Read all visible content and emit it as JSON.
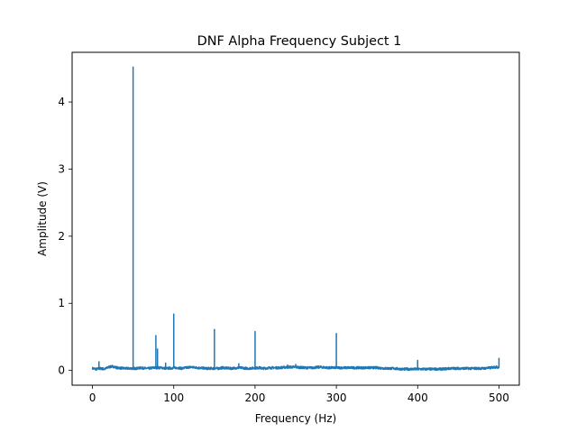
{
  "chart_data": {
    "type": "line",
    "title": "DNF Alpha Frequency Subject 1",
    "xlabel": "Frequency (Hz)",
    "ylabel": "Amplitude (V)",
    "xlim": [
      -25,
      525
    ],
    "ylim": [
      -0.22,
      4.74
    ],
    "xticks": [
      0,
      100,
      200,
      300,
      400,
      500
    ],
    "yticks": [
      0,
      1,
      2,
      3,
      4
    ],
    "grid": false,
    "line_color": "#1f77b4",
    "series": [
      {
        "baseline": [
          [
            0,
            0.03
          ],
          [
            5,
            0.02
          ],
          [
            10,
            0.03
          ],
          [
            15,
            0.02
          ],
          [
            20,
            0.05
          ],
          [
            25,
            0.06
          ],
          [
            30,
            0.04
          ],
          [
            40,
            0.03
          ],
          [
            55,
            0.03
          ],
          [
            60,
            0.04
          ],
          [
            65,
            0.03
          ],
          [
            70,
            0.03
          ],
          [
            75,
            0.04
          ],
          [
            85,
            0.04
          ],
          [
            90,
            0.03
          ],
          [
            105,
            0.04
          ],
          [
            110,
            0.03
          ],
          [
            115,
            0.04
          ],
          [
            120,
            0.05
          ],
          [
            130,
            0.04
          ],
          [
            140,
            0.03
          ],
          [
            155,
            0.03
          ],
          [
            160,
            0.04
          ],
          [
            170,
            0.03
          ],
          [
            180,
            0.04
          ],
          [
            190,
            0.03
          ],
          [
            205,
            0.04
          ],
          [
            210,
            0.03
          ],
          [
            220,
            0.04
          ],
          [
            230,
            0.04
          ],
          [
            240,
            0.05
          ],
          [
            250,
            0.05
          ],
          [
            260,
            0.04
          ],
          [
            270,
            0.04
          ],
          [
            280,
            0.05
          ],
          [
            290,
            0.04
          ],
          [
            305,
            0.04
          ],
          [
            310,
            0.04
          ],
          [
            320,
            0.04
          ],
          [
            330,
            0.04
          ],
          [
            340,
            0.04
          ],
          [
            350,
            0.04
          ],
          [
            360,
            0.03
          ],
          [
            370,
            0.03
          ],
          [
            380,
            0.02
          ],
          [
            390,
            0.02
          ],
          [
            405,
            0.02
          ],
          [
            410,
            0.02
          ],
          [
            420,
            0.02
          ],
          [
            430,
            0.02
          ],
          [
            440,
            0.03
          ],
          [
            450,
            0.03
          ],
          [
            460,
            0.03
          ],
          [
            470,
            0.03
          ],
          [
            480,
            0.03
          ],
          [
            490,
            0.04
          ],
          [
            495,
            0.05
          ],
          [
            500,
            0.05
          ]
        ],
        "peaks": [
          [
            8,
            0.13
          ],
          [
            22,
            0.07
          ],
          [
            50,
            4.52
          ],
          [
            78,
            0.52
          ],
          [
            80,
            0.32
          ],
          [
            90,
            0.11
          ],
          [
            100,
            0.84
          ],
          [
            150,
            0.61
          ],
          [
            180,
            0.1
          ],
          [
            200,
            0.58
          ],
          [
            240,
            0.08
          ],
          [
            250,
            0.09
          ],
          [
            300,
            0.55
          ],
          [
            400,
            0.15
          ],
          [
            500,
            0.18
          ]
        ]
      }
    ]
  }
}
